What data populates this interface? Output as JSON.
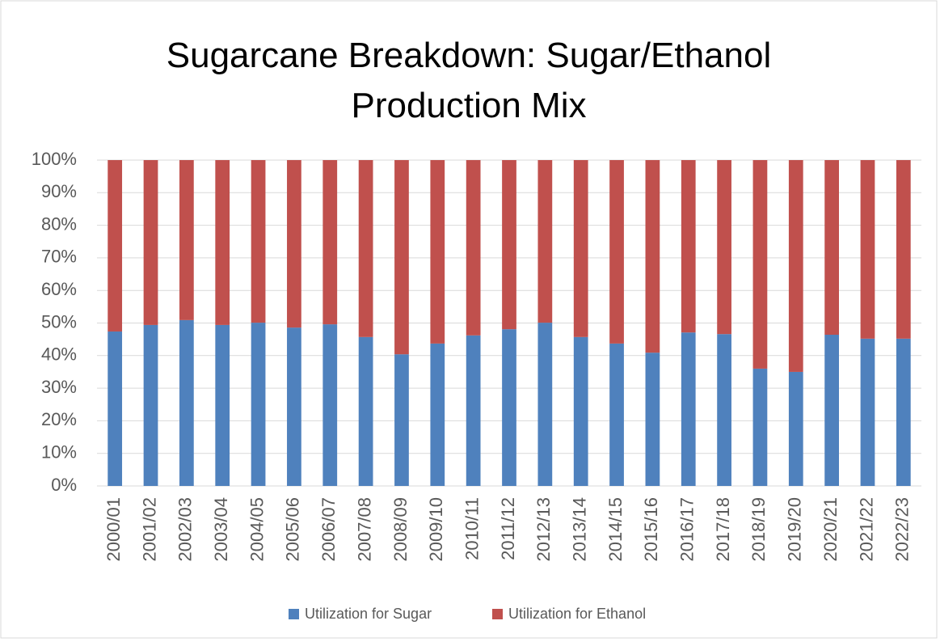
{
  "chart_data": {
    "type": "stacked_bar",
    "title": "Sugarcane Breakdown: Sugar/Ethanol Production Mix",
    "categories": [
      "2000/01",
      "2001/02",
      "2002/03",
      "2003/04",
      "2004/05",
      "2005/06",
      "2006/07",
      "2007/08",
      "2008/09",
      "2009/10",
      "2010/11",
      "2011/12",
      "2012/13",
      "2013/14",
      "2014/15",
      "2015/16",
      "2016/17",
      "2017/18",
      "2018/19",
      "2019/20",
      "2020/21",
      "2021/22",
      "2022/23"
    ],
    "series": [
      {
        "name": "Utilization for Sugar",
        "color": "#4f81bd",
        "values": [
          47.4,
          49.4,
          50.9,
          49.4,
          50.1,
          48.6,
          49.6,
          45.7,
          40.4,
          43.7,
          46.2,
          48.1,
          50.1,
          45.7,
          43.7,
          40.9,
          47.1,
          46.6,
          36.0,
          35.0,
          46.4,
          45.2,
          45.2
        ]
      },
      {
        "name": "Utilization for Ethanol",
        "color": "#c0504d",
        "values": [
          52.6,
          50.6,
          49.1,
          50.6,
          49.9,
          51.4,
          50.4,
          54.3,
          59.6,
          56.3,
          53.8,
          51.9,
          49.9,
          54.3,
          56.3,
          59.1,
          52.9,
          53.4,
          64.0,
          65.0,
          53.6,
          54.8,
          54.8
        ]
      }
    ],
    "ylim": [
      0,
      100
    ],
    "yticks": [
      {
        "value": 0,
        "label": "0%"
      },
      {
        "value": 10,
        "label": "10%"
      },
      {
        "value": 20,
        "label": "20%"
      },
      {
        "value": 30,
        "label": "30%"
      },
      {
        "value": 40,
        "label": "40%"
      },
      {
        "value": 50,
        "label": "50%"
      },
      {
        "value": 60,
        "label": "60%"
      },
      {
        "value": 70,
        "label": "70%"
      },
      {
        "value": 80,
        "label": "80%"
      },
      {
        "value": 90,
        "label": "90%"
      },
      {
        "value": 100,
        "label": "100%"
      }
    ],
    "grid": true,
    "legend": "bottom"
  }
}
